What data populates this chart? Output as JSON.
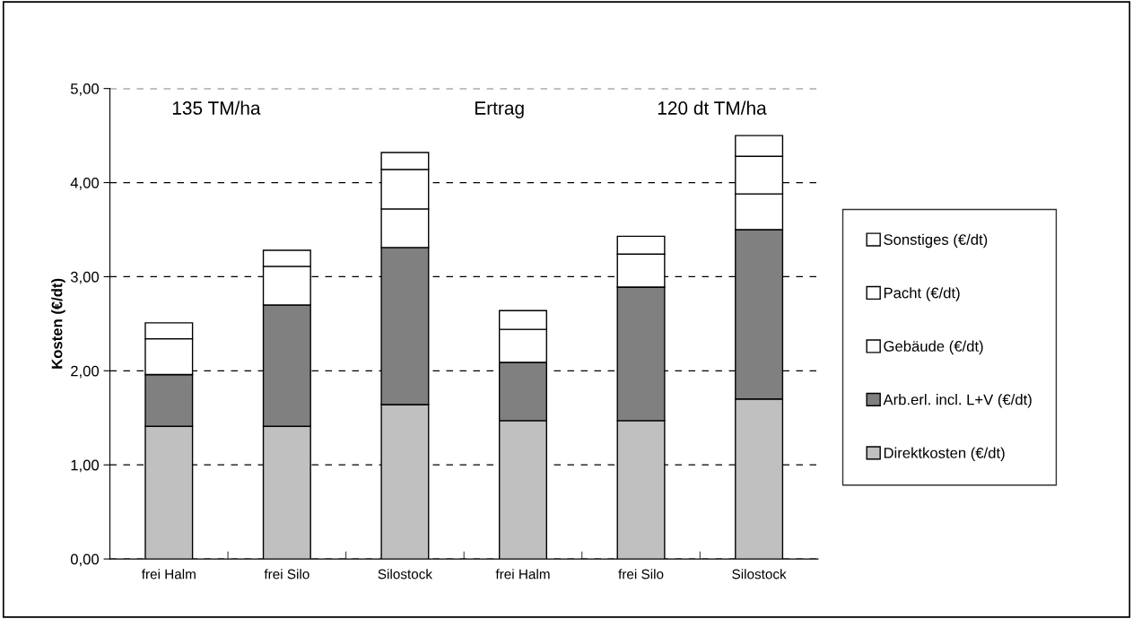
{
  "chart_data": {
    "type": "bar",
    "stacked": true,
    "ylabel": "Kosten (€/dt)",
    "categories": [
      "frei Halm",
      "frei Silo",
      "Silostock",
      "frei Halm",
      "frei Silo",
      "Silostock"
    ],
    "series": [
      {
        "name": "Direktkosten (€/dt)",
        "color": "#c0c0c0",
        "values": [
          1.41,
          1.41,
          1.64,
          1.47,
          1.47,
          1.7
        ]
      },
      {
        "name": "Arb.erl. incl. L+V (€/dt)",
        "color": "#808080",
        "values": [
          0.55,
          1.29,
          1.67,
          0.62,
          1.42,
          1.8
        ]
      },
      {
        "name": "Gebäude (€/dt)",
        "color": "#ffffff",
        "values": [
          0,
          0,
          0.41,
          0,
          0,
          0.38
        ]
      },
      {
        "name": "Pacht (€/dt)",
        "color": "#ffffff",
        "values": [
          0.38,
          0.41,
          0.42,
          0.35,
          0.35,
          0.4
        ]
      },
      {
        "name": "Sonstiges (€/dt)",
        "color": "#ffffff",
        "values": [
          0.17,
          0.17,
          0.18,
          0.2,
          0.19,
          0.22
        ]
      }
    ],
    "ylim": [
      0,
      5
    ],
    "yticks": [
      {
        "value": 0,
        "label": "0,00"
      },
      {
        "value": 1,
        "label": "1,00"
      },
      {
        "value": 2,
        "label": "2,00"
      },
      {
        "value": 3,
        "label": "3,00"
      },
      {
        "value": 4,
        "label": "4,00"
      },
      {
        "value": 5,
        "label": "5,00"
      }
    ],
    "grid": "y",
    "legend": "right",
    "annotations": [
      "135 TM/ha",
      "Ertrag",
      "120 dt TM/ha"
    ]
  }
}
